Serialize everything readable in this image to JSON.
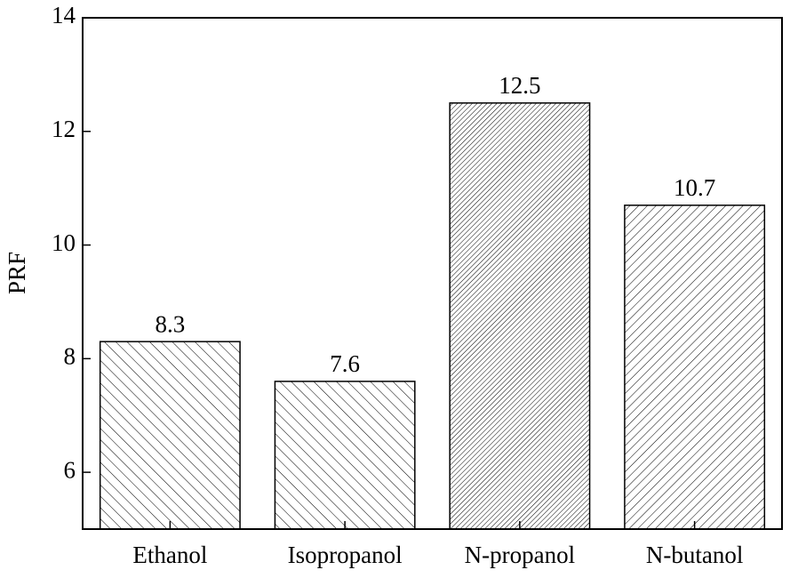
{
  "chart_data": {
    "type": "bar",
    "ylabel": "PRF",
    "categories": [
      "Ethanol",
      "Isopropanol",
      "N-propanol",
      "N-butanol"
    ],
    "values": [
      8.3,
      7.6,
      12.5,
      10.7
    ],
    "hatches": [
      "/",
      "/",
      "\\\\",
      "\\"
    ],
    "color": "#ffffff",
    "ylim": [
      5,
      14
    ],
    "yticks": [
      6,
      8,
      10,
      12,
      14
    ]
  }
}
